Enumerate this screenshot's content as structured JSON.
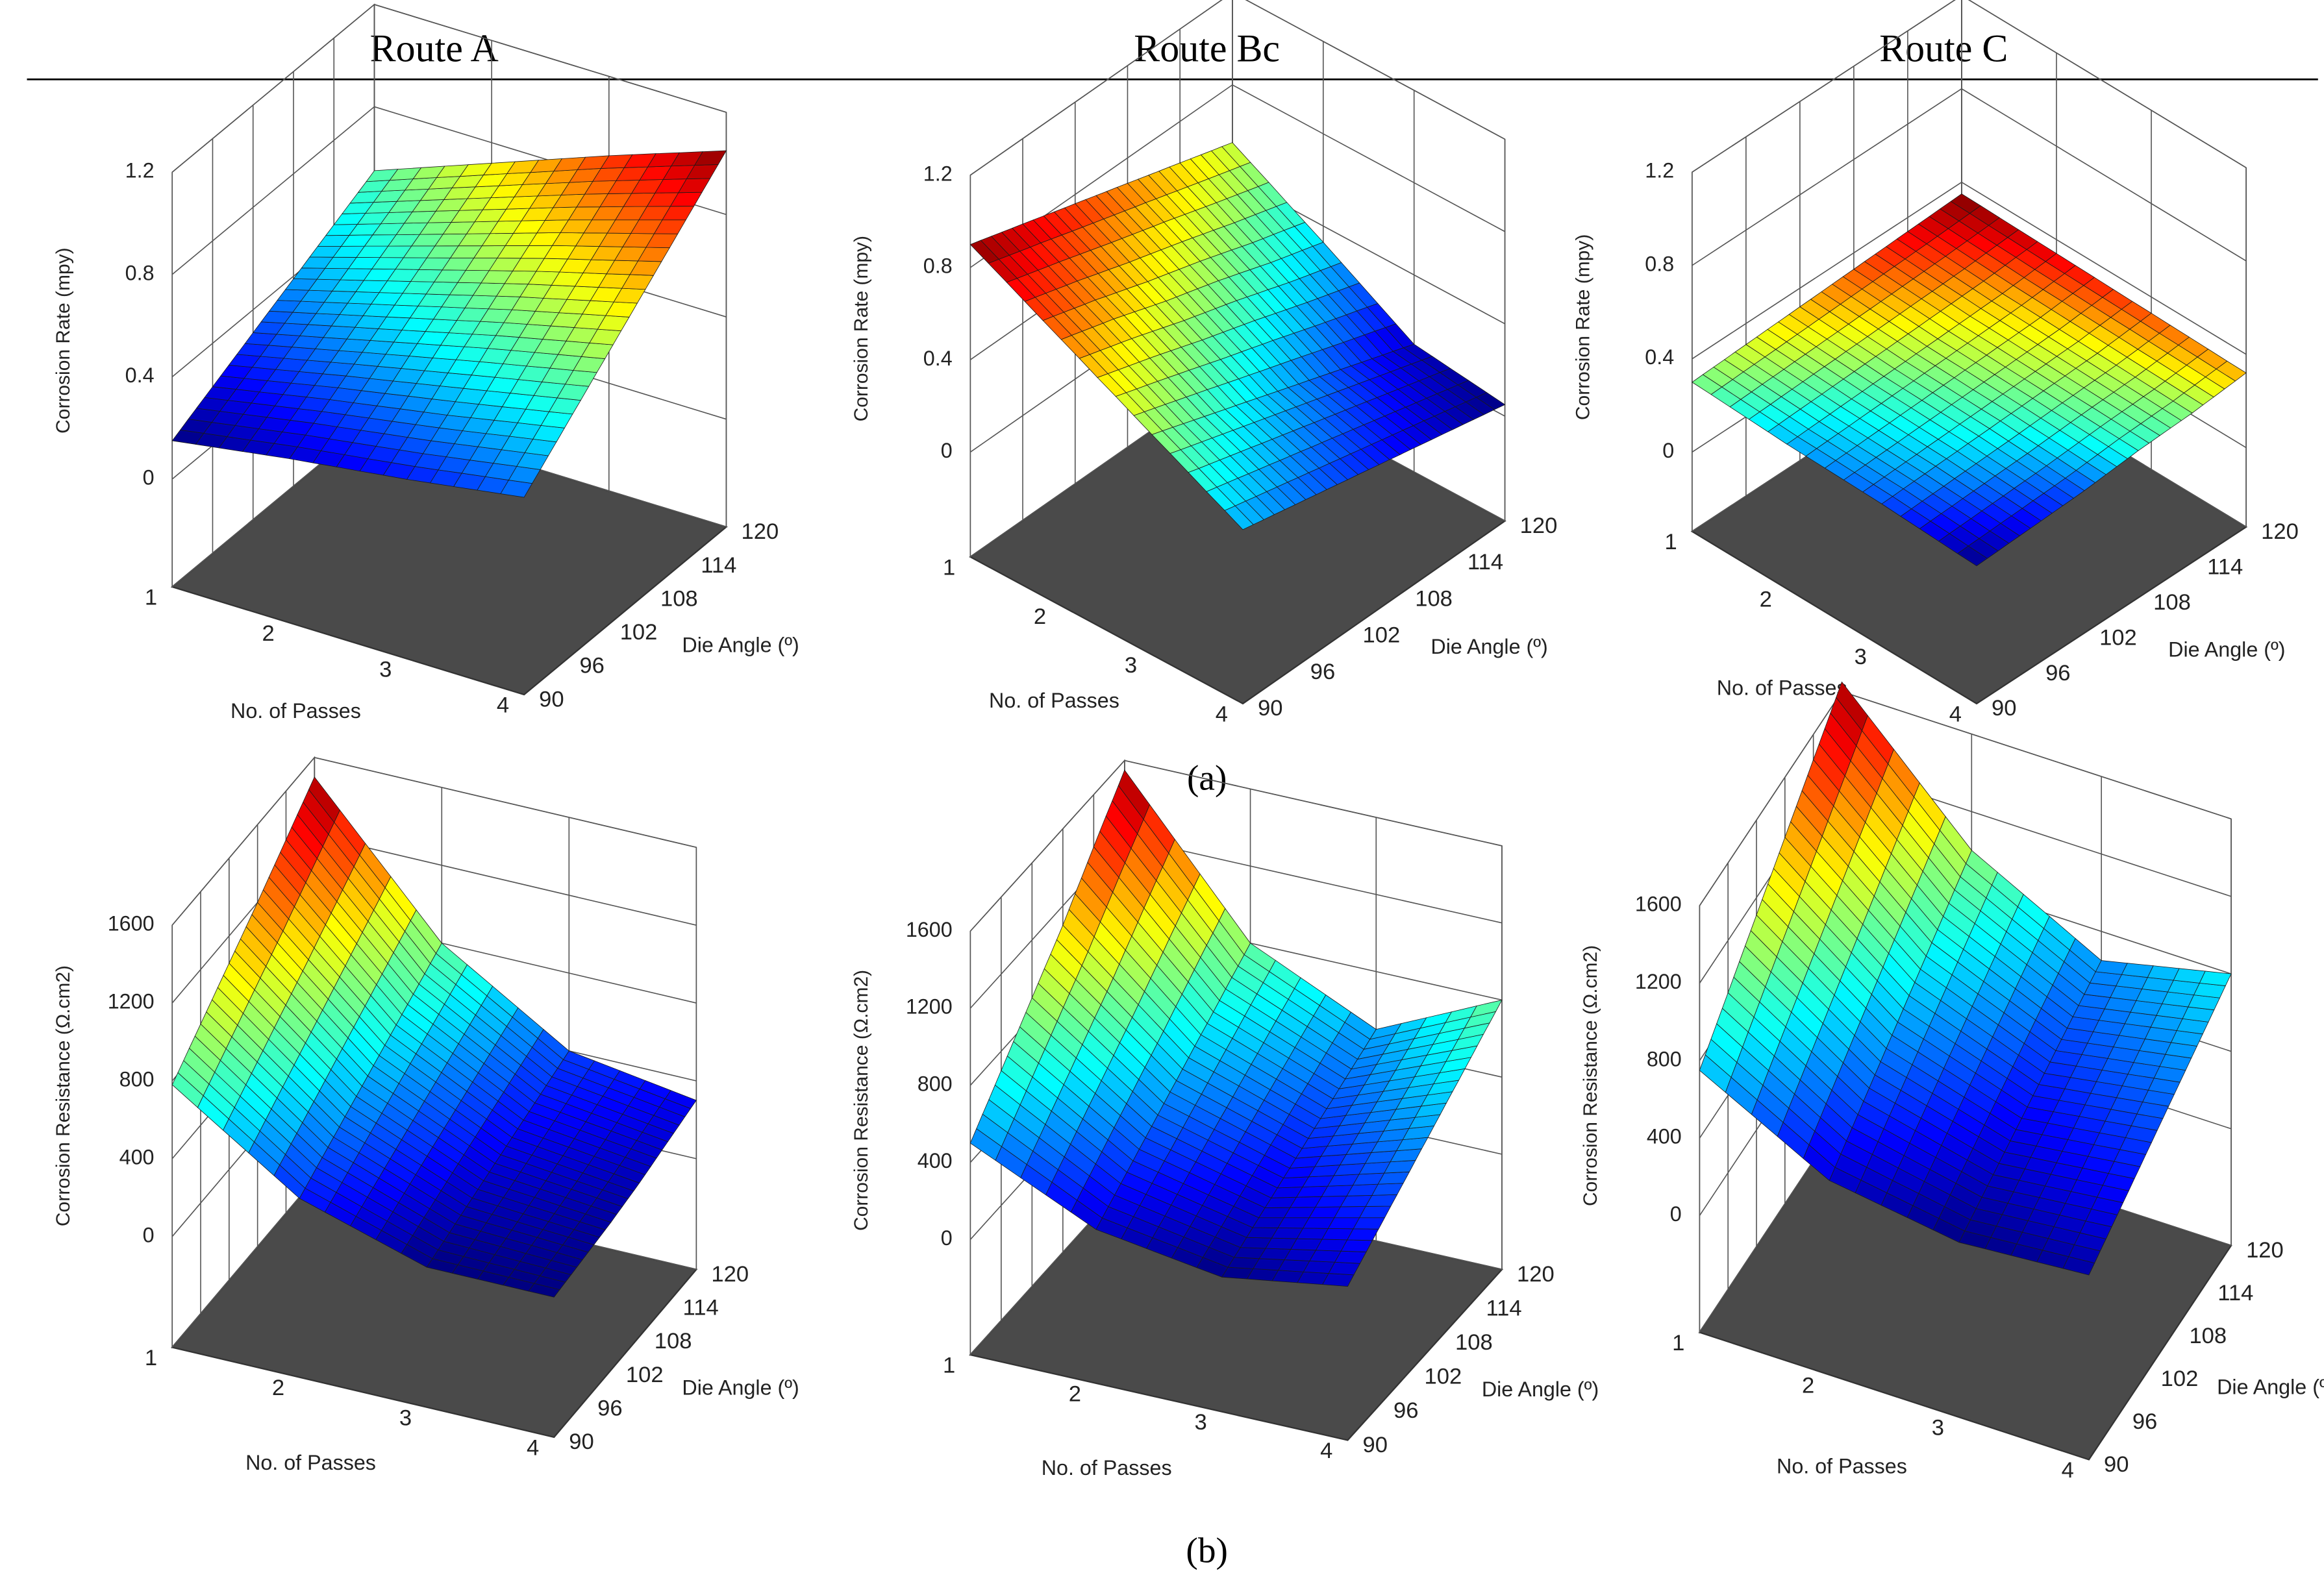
{
  "columns": [
    "Route A",
    "Route Bc",
    "Route C"
  ],
  "panel_labels": [
    "(a)",
    "(b)"
  ],
  "chart_data": [
    {
      "type": "surface",
      "colormap": "jet",
      "zlabel": "Corrosion Rate (mpy)",
      "xlabel": "No. of Passes",
      "ylabel": "Die Angle (º)",
      "xlim": [
        1,
        4
      ],
      "ylim": [
        90,
        120
      ],
      "zlim": [
        0,
        1.2
      ],
      "xticks": [
        1,
        2,
        3,
        4
      ],
      "yticks": [
        90,
        96,
        102,
        108,
        114,
        120
      ],
      "zticks": [
        0,
        0.4,
        0.8,
        1.2
      ],
      "z": [
        [
          0.15,
          0.23,
          0.31,
          0.39,
          0.47,
          0.55
        ],
        [
          0.22,
          0.32,
          0.42,
          0.52,
          0.62,
          0.72
        ],
        [
          0.28,
          0.4,
          0.53,
          0.65,
          0.77,
          0.89
        ],
        [
          0.35,
          0.49,
          0.63,
          0.77,
          0.91,
          1.05
        ]
      ]
    },
    {
      "type": "surface",
      "colormap": "jet",
      "zlabel": "Corrosion Rate (mpy)",
      "xlabel": "No. of Passes",
      "ylabel": "Die Angle (º)",
      "xlim": [
        1,
        4
      ],
      "ylim": [
        90,
        120
      ],
      "zlim": [
        0,
        1.2
      ],
      "xticks": [
        1,
        2,
        3,
        4
      ],
      "yticks": [
        90,
        96,
        102,
        108,
        114,
        120
      ],
      "zticks": [
        0,
        0.4,
        0.8,
        1.2
      ],
      "z": [
        [
          0.9,
          0.83,
          0.76,
          0.69,
          0.62,
          0.55
        ],
        [
          0.7,
          0.63,
          0.55,
          0.48,
          0.4,
          0.33
        ],
        [
          0.5,
          0.42,
          0.34,
          0.26,
          0.18,
          0.1
        ],
        [
          0.3,
          0.25,
          0.2,
          0.15,
          0.1,
          0.05
        ]
      ]
    },
    {
      "type": "surface",
      "colormap": "jet",
      "zlabel": "Corrosion Rate (mpy)",
      "xlabel": "No. of Passes",
      "ylabel": "Die Angle (º)",
      "xlim": [
        1,
        4
      ],
      "ylim": [
        90,
        120
      ],
      "zlim": [
        0,
        1.2
      ],
      "xticks": [
        1,
        2,
        3,
        4
      ],
      "yticks": [
        90,
        96,
        102,
        108,
        114,
        120
      ],
      "zticks": [
        0,
        0.4,
        0.8,
        1.2
      ],
      "z": [
        [
          0.3,
          0.31,
          0.32,
          0.33,
          0.34,
          0.35
        ],
        [
          0.28,
          0.29,
          0.3,
          0.31,
          0.32,
          0.34
        ],
        [
          0.27,
          0.28,
          0.29,
          0.3,
          0.31,
          0.33
        ],
        [
          0.25,
          0.26,
          0.27,
          0.29,
          0.3,
          0.32
        ]
      ]
    },
    {
      "type": "surface",
      "colormap": "jet",
      "zlabel": "Corrosion Resistance (Ω.cm2)",
      "xlabel": "No. of Passes",
      "ylabel": "Die Angle (º)",
      "xlim": [
        1,
        4
      ],
      "ylim": [
        90,
        120
      ],
      "zlim": [
        0,
        1600
      ],
      "xticks": [
        1,
        2,
        3,
        4
      ],
      "yticks": [
        90,
        96,
        102,
        108,
        114,
        120
      ],
      "zticks": [
        0,
        400,
        800,
        1200,
        1600
      ],
      "z": [
        [
          780,
          920,
          1060,
          1200,
          1350,
          1500
        ],
        [
          350,
          440,
          530,
          620,
          710,
          800
        ],
        [
          150,
          200,
          250,
          300,
          350,
          400
        ],
        [
          150,
          170,
          190,
          220,
          260,
          300
        ]
      ]
    },
    {
      "type": "surface",
      "colormap": "jet",
      "zlabel": "Corrosion Resistance (Ω.cm2)",
      "xlabel": "No. of Passes",
      "ylabel": "Die Angle (º)",
      "xlim": [
        1,
        4
      ],
      "ylim": [
        90,
        120
      ],
      "zlim": [
        0,
        1600
      ],
      "xticks": [
        1,
        2,
        3,
        4
      ],
      "yticks": [
        90,
        96,
        102,
        108,
        114,
        120
      ],
      "zticks": [
        0,
        400,
        800,
        1200,
        1600
      ],
      "z": [
        [
          500,
          700,
          900,
          1100,
          1330,
          1550
        ],
        [
          200,
          320,
          440,
          560,
          680,
          800
        ],
        [
          100,
          180,
          260,
          340,
          420,
          500
        ],
        [
          200,
          320,
          440,
          560,
          680,
          800
        ]
      ]
    },
    {
      "type": "surface",
      "colormap": "jet",
      "zlabel": "Corrosion Resistance (Ω.cm2)",
      "xlabel": "No. of Passes",
      "ylabel": "Die Angle (º)",
      "xlim": [
        1,
        4
      ],
      "ylim": [
        90,
        120
      ],
      "zlim": [
        0,
        1600
      ],
      "xticks": [
        1,
        2,
        3,
        4
      ],
      "yticks": [
        90,
        96,
        102,
        108,
        114,
        120
      ],
      "zticks": [
        0,
        400,
        800,
        1200,
        1600
      ],
      "z": [
        [
          750,
          930,
          1110,
          1290,
          1470,
          1650
        ],
        [
          400,
          520,
          640,
          760,
          880,
          1000
        ],
        [
          300,
          370,
          440,
          510,
          580,
          650
        ],
        [
          350,
          440,
          530,
          620,
          710,
          800
        ]
      ]
    }
  ]
}
